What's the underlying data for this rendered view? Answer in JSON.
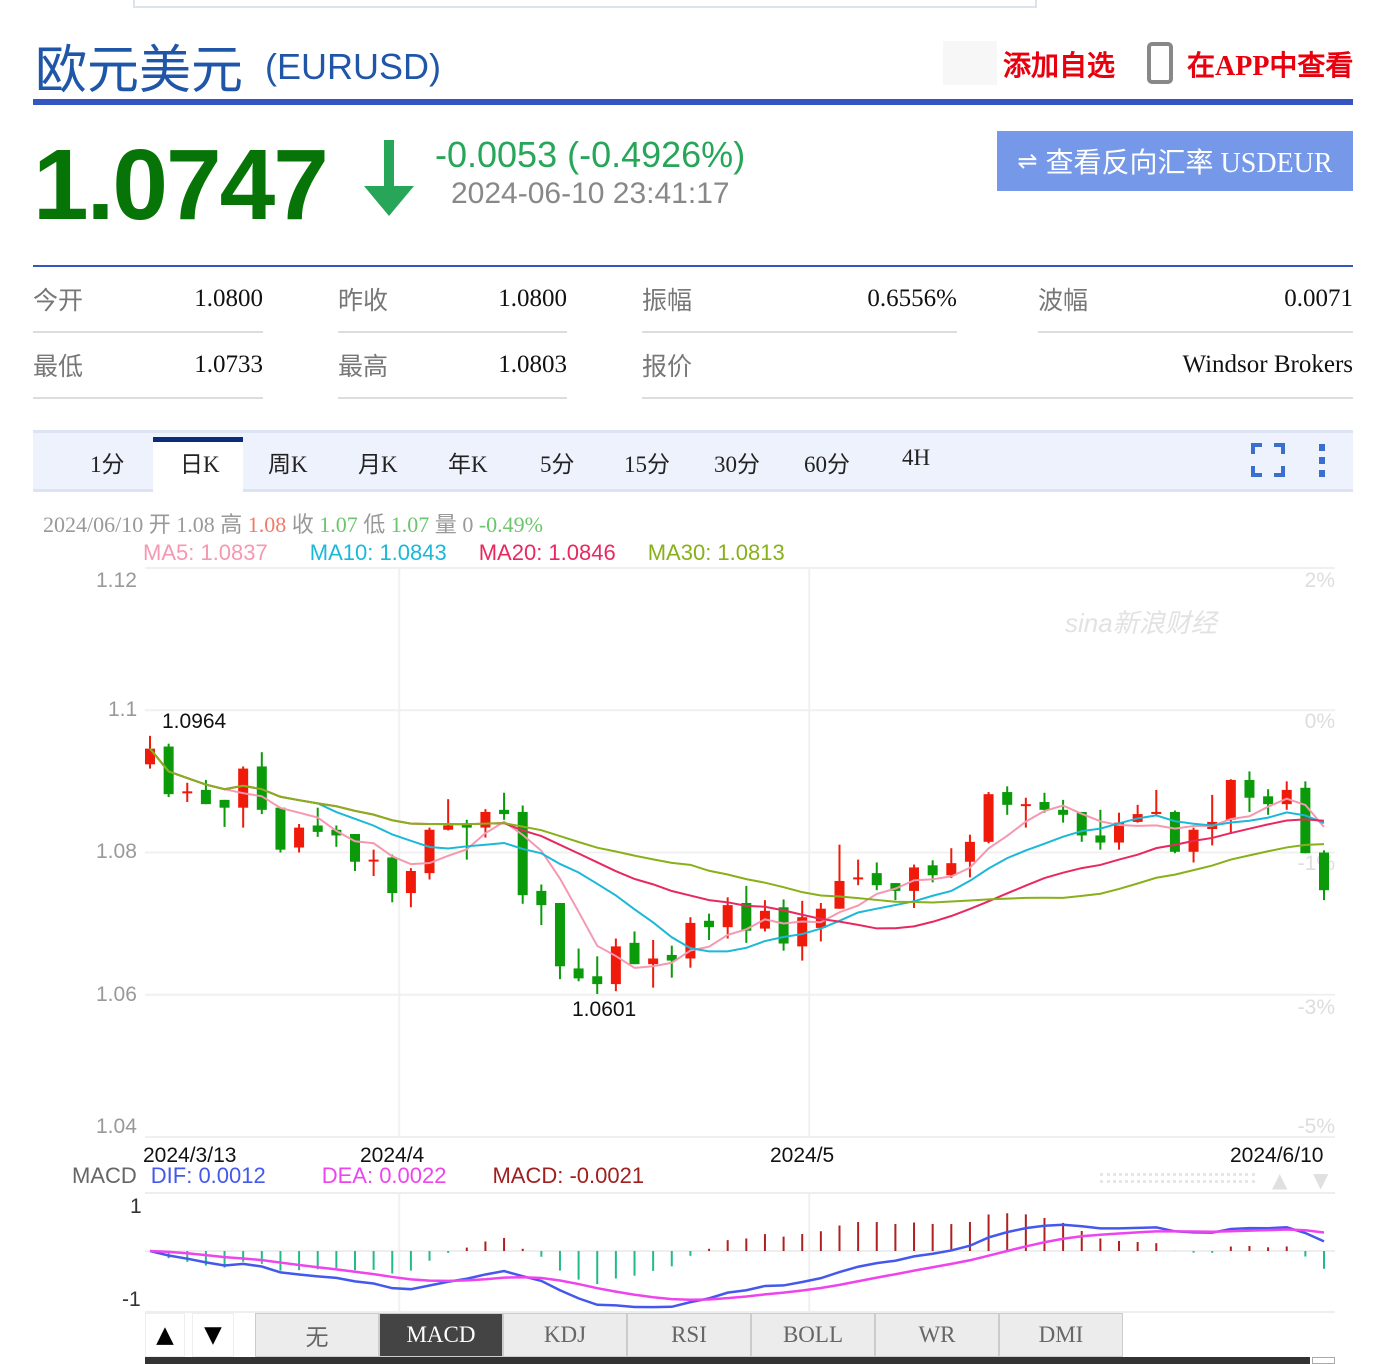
{
  "header": {
    "title": "欧元美元",
    "code": "(EURUSD)",
    "add_watchlist": "添加自选",
    "view_in_app": "在APP中查看",
    "phone_icon": "mobile-phone-icon"
  },
  "quote": {
    "price": "1.0747",
    "direction": "down",
    "change": "-0.0053 (-0.4926%)",
    "datetime": "2024-06-10 23:41:17",
    "reverse_button": "查看反向汇率 USDEUR",
    "colors": {
      "price": "#067406",
      "change": "#27a659"
    }
  },
  "stats": {
    "row1": [
      {
        "label": "今开",
        "value": "1.0800"
      },
      {
        "label": "昨收",
        "value": "1.0800"
      },
      {
        "label": "振幅",
        "value": "0.6556%"
      },
      {
        "label": "波幅",
        "value": "0.0071"
      }
    ],
    "row2": [
      {
        "label": "最低",
        "value": "1.0733"
      },
      {
        "label": "最高",
        "value": "1.0803"
      },
      {
        "label": "报价",
        "value": "Windsor Brokers"
      }
    ]
  },
  "tabs": [
    {
      "label": "1分"
    },
    {
      "label": "日K",
      "active": true
    },
    {
      "label": "周K"
    },
    {
      "label": "月K"
    },
    {
      "label": "年K"
    },
    {
      "label": "5分"
    },
    {
      "label": "15分"
    },
    {
      "label": "30分"
    },
    {
      "label": "60分"
    },
    {
      "label": "4H"
    }
  ],
  "toolbar": {
    "fullscreen_icon": "fullscreen-icon",
    "more_icon": "more-vertical-icon"
  },
  "info_line": {
    "date": "2024/06/10",
    "open_label": "开",
    "open": "1.08",
    "high_label": "高",
    "high": "1.08",
    "close_label": "收",
    "close": "1.07",
    "low_label": "低",
    "low": "1.07",
    "vol_label": "量",
    "vol": "0",
    "pct": "-0.49%"
  },
  "ma_legend": {
    "ma5": "MA5: 1.0837",
    "ma10": "MA10: 1.0843",
    "ma20": "MA20: 1.0846",
    "ma30": "MA30: 1.0813"
  },
  "watermark": "sina新浪财经",
  "chart_data": {
    "type": "candlestick",
    "ylim": [
      1.04,
      1.12
    ],
    "y_ticks": [
      "1.12",
      "1.1",
      "1.08",
      "1.06",
      "1.04"
    ],
    "y_right_ticks": [
      "2%",
      "0%",
      "-1%",
      "-3%",
      "-5%"
    ],
    "x_ticks": [
      {
        "label": "2024/3/13",
        "index": 0
      },
      {
        "label": "2024/4",
        "index": 13
      },
      {
        "label": "2024/5",
        "index": 35
      },
      {
        "label": "2024/6/10",
        "index": 63
      }
    ],
    "annotations": [
      {
        "label": "1.0964",
        "index": 0
      },
      {
        "label": "1.0601",
        "index": 24
      }
    ],
    "colors": {
      "up": "#f01a0a",
      "down": "#0a9a0a",
      "ma5": "#f598b0",
      "ma10": "#1cb8d8",
      "ma20": "#e8285f",
      "ma30": "#88b01a",
      "dif": "#4458ee",
      "dea": "#ee44ee",
      "macd_up": "#b02020",
      "macd_down": "#22bb88"
    },
    "ohlc": [
      [
        1.0924,
        1.0964,
        1.0918,
        1.0946
      ],
      [
        1.0949,
        1.0953,
        1.0878,
        1.0882
      ],
      [
        1.0884,
        1.0898,
        1.0871,
        1.0886
      ],
      [
        1.0888,
        1.0902,
        1.0868,
        1.0868
      ],
      [
        1.0874,
        1.0874,
        1.0836,
        1.0863
      ],
      [
        1.0863,
        1.0921,
        1.0835,
        1.0918
      ],
      [
        1.0921,
        1.0941,
        1.0854,
        1.086
      ],
      [
        1.0863,
        1.0863,
        1.08,
        1.0804
      ],
      [
        1.0807,
        1.084,
        1.08,
        1.0835
      ],
      [
        1.0838,
        1.0863,
        1.0822,
        1.0829
      ],
      [
        1.0832,
        1.0838,
        1.0808,
        1.0824
      ],
      [
        1.0826,
        1.0826,
        1.0774,
        1.0787
      ],
      [
        1.0788,
        1.0804,
        1.0767,
        1.079
      ],
      [
        1.0793,
        1.0797,
        1.073,
        1.0743
      ],
      [
        1.0743,
        1.0778,
        1.0723,
        1.0774
      ],
      [
        1.0771,
        1.0835,
        1.0762,
        1.0832
      ],
      [
        1.0832,
        1.0875,
        1.0831,
        1.0838
      ],
      [
        1.084,
        1.0846,
        1.079,
        1.0835
      ],
      [
        1.0835,
        1.0861,
        1.0821,
        1.0857
      ],
      [
        1.086,
        1.0884,
        1.0846,
        1.0854
      ],
      [
        1.0857,
        1.0866,
        1.0728,
        1.074
      ],
      [
        1.0746,
        1.0755,
        1.0698,
        1.0726
      ],
      [
        1.0729,
        1.0729,
        1.0622,
        1.064
      ],
      [
        1.0637,
        1.0665,
        1.0619,
        1.0623
      ],
      [
        1.0626,
        1.0654,
        1.0601,
        1.0615
      ],
      [
        1.0615,
        1.0679,
        1.0605,
        1.0668
      ],
      [
        1.0673,
        1.0689,
        1.0643,
        1.0643
      ],
      [
        1.0643,
        1.0677,
        1.061,
        1.0651
      ],
      [
        1.0656,
        1.0669,
        1.0624,
        1.0648
      ],
      [
        1.0651,
        1.0709,
        1.0638,
        1.0701
      ],
      [
        1.0704,
        1.0714,
        1.0677,
        1.0695
      ],
      [
        1.0695,
        1.0737,
        1.0679,
        1.0726
      ],
      [
        1.0729,
        1.0753,
        1.0673,
        1.069
      ],
      [
        1.0693,
        1.0733,
        1.0689,
        1.0718
      ],
      [
        1.0723,
        1.0734,
        1.0662,
        1.0672
      ],
      [
        1.0668,
        1.0732,
        1.0648,
        1.0709
      ],
      [
        1.0694,
        1.0729,
        1.0675,
        1.0721
      ],
      [
        1.0721,
        1.0811,
        1.0721,
        1.076
      ],
      [
        1.0763,
        1.079,
        1.0754,
        1.0765
      ],
      [
        1.0771,
        1.0786,
        1.0747,
        1.0754
      ],
      [
        1.0757,
        1.0757,
        1.0733,
        1.0746
      ],
      [
        1.0746,
        1.0783,
        1.0722,
        1.0779
      ],
      [
        1.0782,
        1.0789,
        1.0758,
        1.0768
      ],
      [
        1.0768,
        1.0806,
        1.0764,
        1.0785
      ],
      [
        1.0787,
        1.0825,
        1.0765,
        1.0815
      ],
      [
        1.0815,
        1.0885,
        1.0813,
        1.0882
      ],
      [
        1.0885,
        1.0893,
        1.0853,
        1.0867
      ],
      [
        1.0866,
        1.0877,
        1.0835,
        1.0868
      ],
      [
        1.0871,
        1.0884,
        1.0856,
        1.086
      ],
      [
        1.086,
        1.0874,
        1.0842,
        1.0853
      ],
      [
        1.0857,
        1.0857,
        1.0815,
        1.0824
      ],
      [
        1.0824,
        1.086,
        1.0804,
        1.0814
      ],
      [
        1.0814,
        1.0856,
        1.0804,
        1.0842
      ],
      [
        1.0843,
        1.0867,
        1.0842,
        1.0854
      ],
      [
        1.0855,
        1.0888,
        1.0853,
        1.0857
      ],
      [
        1.0857,
        1.0859,
        1.0799,
        1.0801
      ],
      [
        1.0801,
        1.0835,
        1.0786,
        1.0832
      ],
      [
        1.0833,
        1.0881,
        1.081,
        1.0843
      ],
      [
        1.0846,
        1.0903,
        1.0826,
        1.0902
      ],
      [
        1.0902,
        1.0914,
        1.0857,
        1.0877
      ],
      [
        1.0879,
        1.0889,
        1.0853,
        1.0868
      ],
      [
        1.0868,
        1.09,
        1.086,
        1.0888
      ],
      [
        1.0891,
        1.09,
        1.0799,
        1.0799
      ],
      [
        1.08,
        1.0803,
        1.0733,
        1.0747
      ]
    ],
    "indicator": {
      "name": "MACD",
      "dif": "DIF: 0.0012",
      "dea": "DEA: 0.0022",
      "macd": "MACD: -0.0021",
      "y_ticks": [
        "1",
        "-1"
      ]
    }
  },
  "indicator_buttons": {
    "up": "▲",
    "down": "▼",
    "items": [
      {
        "label": "无"
      },
      {
        "label": "MACD",
        "active": true
      },
      {
        "label": "KDJ"
      },
      {
        "label": "RSI"
      },
      {
        "label": "BOLL"
      },
      {
        "label": "WR"
      },
      {
        "label": "DMI"
      }
    ]
  }
}
